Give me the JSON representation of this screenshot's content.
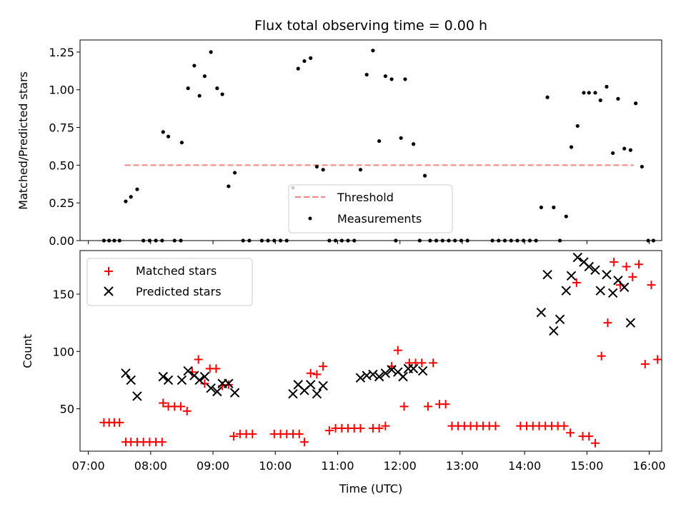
{
  "chart_data": [
    {
      "type": "scatter",
      "title": "Flux total observing time = 0.00 h",
      "xlabel": "",
      "ylabel": "Matched/Predicted stars",
      "ylim": [
        0,
        1.33
      ],
      "yticks": [
        "0.00",
        "0.25",
        "0.50",
        "0.75",
        "1.00",
        "1.25"
      ],
      "ytick_values": [
        0,
        0.25,
        0.5,
        0.75,
        1.0,
        1.25
      ],
      "xlim": [
        "06:52",
        "16:12"
      ],
      "xtick_labels_shown": false,
      "threshold": {
        "name": "Threshold",
        "y": 0.5,
        "x_range": [
          "07:35",
          "15:45"
        ],
        "color": "#ff7f7f",
        "dash": true
      },
      "series": [
        {
          "name": "Measurements",
          "color": "#000000",
          "marker": "dot",
          "points": [
            [
              "07:15",
              0
            ],
            [
              "07:20",
              0
            ],
            [
              "07:25",
              0
            ],
            [
              "07:30",
              0
            ],
            [
              "07:36",
              0.26
            ],
            [
              "07:41",
              0.29
            ],
            [
              "07:47",
              0.34
            ],
            [
              "07:53",
              0
            ],
            [
              "07:59",
              0
            ],
            [
              "08:05",
              0
            ],
            [
              "08:11",
              0
            ],
            [
              "08:12",
              0.72
            ],
            [
              "08:17",
              0.69
            ],
            [
              "08:23",
              0
            ],
            [
              "08:29",
              0
            ],
            [
              "08:30",
              0.65
            ],
            [
              "08:36",
              1.01
            ],
            [
              "08:42",
              1.16
            ],
            [
              "08:47",
              0.96
            ],
            [
              "08:52",
              1.09
            ],
            [
              "08:58",
              1.25
            ],
            [
              "09:04",
              1.01
            ],
            [
              "09:09",
              0.97
            ],
            [
              "09:15",
              0.36
            ],
            [
              "09:21",
              0.45
            ],
            [
              "09:29",
              0
            ],
            [
              "09:35",
              0
            ],
            [
              "09:47",
              0
            ],
            [
              "09:53",
              0
            ],
            [
              "09:59",
              0
            ],
            [
              "10:05",
              0
            ],
            [
              "10:11",
              0
            ],
            [
              "10:17",
              0.35
            ],
            [
              "10:22",
              1.14
            ],
            [
              "10:28",
              1.19
            ],
            [
              "10:34",
              1.21
            ],
            [
              "10:40",
              0.49
            ],
            [
              "10:46",
              0.47
            ],
            [
              "10:52",
              0
            ],
            [
              "10:58",
              0
            ],
            [
              "11:04",
              0
            ],
            [
              "11:10",
              0
            ],
            [
              "11:16",
              0
            ],
            [
              "11:22",
              0.47
            ],
            [
              "11:28",
              1.1
            ],
            [
              "11:34",
              1.26
            ],
            [
              "11:40",
              0.66
            ],
            [
              "11:46",
              1.09
            ],
            [
              "11:52",
              1.07
            ],
            [
              "11:56",
              0
            ],
            [
              "12:01",
              0.68
            ],
            [
              "12:05",
              1.07
            ],
            [
              "12:13",
              0.64
            ],
            [
              "12:19",
              0
            ],
            [
              "12:24",
              0.43
            ],
            [
              "12:29",
              0
            ],
            [
              "12:35",
              0
            ],
            [
              "12:41",
              0
            ],
            [
              "12:47",
              0
            ],
            [
              "12:53",
              0
            ],
            [
              "12:59",
              0
            ],
            [
              "13:05",
              0
            ],
            [
              "13:29",
              0
            ],
            [
              "13:35",
              0
            ],
            [
              "13:41",
              0
            ],
            [
              "13:47",
              0
            ],
            [
              "13:53",
              0
            ],
            [
              "13:59",
              0
            ],
            [
              "14:05",
              0
            ],
            [
              "14:11",
              0
            ],
            [
              "14:16",
              0.22
            ],
            [
              "14:22",
              0.95
            ],
            [
              "14:28",
              0.22
            ],
            [
              "14:34",
              0
            ],
            [
              "14:40",
              0.16
            ],
            [
              "14:45",
              0.62
            ],
            [
              "14:51",
              0.76
            ],
            [
              "14:57",
              0.98
            ],
            [
              "15:02",
              0.98
            ],
            [
              "15:08",
              0.98
            ],
            [
              "15:13",
              0.93
            ],
            [
              "15:19",
              1.02
            ],
            [
              "15:25",
              0.58
            ],
            [
              "15:30",
              0.94
            ],
            [
              "15:36",
              0.61
            ],
            [
              "15:42",
              0.6
            ],
            [
              "15:47",
              0.91
            ],
            [
              "15:53",
              0.49
            ],
            [
              "15:59",
              0
            ],
            [
              "16:04",
              0
            ]
          ]
        }
      ],
      "legend": {
        "placement": "lower-center",
        "entries": [
          "Threshold",
          "Measurements"
        ]
      }
    },
    {
      "type": "scatter",
      "title": "",
      "xlabel": "Time (UTC)",
      "ylabel": "Count",
      "ylim": [
        13,
        188
      ],
      "yticks": [
        "50",
        "100",
        "150"
      ],
      "ytick_values": [
        50,
        100,
        150
      ],
      "xlim": [
        "06:52",
        "16:12"
      ],
      "xticks": [
        "07:00",
        "08:00",
        "09:00",
        "10:00",
        "11:00",
        "12:00",
        "13:00",
        "14:00",
        "15:00",
        "16:00"
      ],
      "series": [
        {
          "name": "Matched stars",
          "color": "#ff0000",
          "marker": "plus",
          "points": [
            [
              "07:15",
              38
            ],
            [
              "07:20",
              38
            ],
            [
              "07:25",
              38
            ],
            [
              "07:30",
              38
            ],
            [
              "07:36",
              21
            ],
            [
              "07:41",
              21
            ],
            [
              "07:47",
              21
            ],
            [
              "07:53",
              21
            ],
            [
              "07:59",
              21
            ],
            [
              "08:05",
              21
            ],
            [
              "08:11",
              21
            ],
            [
              "08:12",
              55
            ],
            [
              "08:17",
              52
            ],
            [
              "08:23",
              52
            ],
            [
              "08:29",
              52
            ],
            [
              "08:35",
              48
            ],
            [
              "08:40",
              82
            ],
            [
              "08:46",
              93
            ],
            [
              "08:52",
              72
            ],
            [
              "08:57",
              85
            ],
            [
              "09:03",
              85
            ],
            [
              "09:09",
              70
            ],
            [
              "09:15",
              71
            ],
            [
              "09:20",
              26
            ],
            [
              "09:26",
              28
            ],
            [
              "09:32",
              28
            ],
            [
              "09:38",
              28
            ],
            [
              "09:59",
              28
            ],
            [
              "10:05",
              28
            ],
            [
              "10:11",
              28
            ],
            [
              "10:17",
              28
            ],
            [
              "10:23",
              28
            ],
            [
              "10:28",
              21
            ],
            [
              "10:34",
              81
            ],
            [
              "10:40",
              80
            ],
            [
              "10:46",
              87
            ],
            [
              "10:52",
              31
            ],
            [
              "10:58",
              33
            ],
            [
              "11:04",
              33
            ],
            [
              "11:10",
              33
            ],
            [
              "11:16",
              33
            ],
            [
              "11:22",
              33
            ],
            [
              "11:34",
              33
            ],
            [
              "11:40",
              33
            ],
            [
              "11:46",
              35
            ],
            [
              "11:52",
              87
            ],
            [
              "11:58",
              101
            ],
            [
              "12:04",
              52
            ],
            [
              "12:09",
              90
            ],
            [
              "12:15",
              90
            ],
            [
              "12:21",
              90
            ],
            [
              "12:27",
              52
            ],
            [
              "12:32",
              90
            ],
            [
              "12:38",
              54
            ],
            [
              "12:44",
              54
            ],
            [
              "12:50",
              35
            ],
            [
              "12:56",
              35
            ],
            [
              "13:02",
              35
            ],
            [
              "13:08",
              35
            ],
            [
              "13:14",
              35
            ],
            [
              "13:20",
              35
            ],
            [
              "13:26",
              35
            ],
            [
              "13:32",
              35
            ],
            [
              "13:56",
              35
            ],
            [
              "14:02",
              35
            ],
            [
              "14:08",
              35
            ],
            [
              "14:14",
              35
            ],
            [
              "14:20",
              35
            ],
            [
              "14:26",
              35
            ],
            [
              "14:32",
              35
            ],
            [
              "14:38",
              35
            ],
            [
              "14:44",
              29
            ],
            [
              "14:50",
              160
            ],
            [
              "14:56",
              26
            ],
            [
              "15:02",
              26
            ],
            [
              "15:08",
              20
            ],
            [
              "15:14",
              96
            ],
            [
              "15:20",
              125
            ],
            [
              "15:26",
              178
            ],
            [
              "15:32",
              158
            ],
            [
              "15:38",
              174
            ],
            [
              "15:44",
              165
            ],
            [
              "15:50",
              176
            ],
            [
              "15:56",
              89
            ],
            [
              "16:02",
              158
            ],
            [
              "16:08",
              93
            ]
          ]
        },
        {
          "name": "Predicted stars",
          "color": "#000000",
          "marker": "x",
          "points": [
            [
              "07:36",
              81
            ],
            [
              "07:41",
              75
            ],
            [
              "07:47",
              61
            ],
            [
              "08:12",
              78
            ],
            [
              "08:17",
              75
            ],
            [
              "08:30",
              75
            ],
            [
              "08:36",
              83
            ],
            [
              "08:42",
              79
            ],
            [
              "08:47",
              75
            ],
            [
              "08:52",
              78
            ],
            [
              "08:58",
              68
            ],
            [
              "09:04",
              65
            ],
            [
              "09:09",
              72
            ],
            [
              "09:15",
              72
            ],
            [
              "09:21",
              64
            ],
            [
              "10:17",
              63
            ],
            [
              "10:22",
              71
            ],
            [
              "10:28",
              66
            ],
            [
              "10:34",
              71
            ],
            [
              "10:40",
              63
            ],
            [
              "10:46",
              70
            ],
            [
              "11:22",
              77
            ],
            [
              "11:28",
              79
            ],
            [
              "11:34",
              80
            ],
            [
              "11:40",
              78
            ],
            [
              "11:46",
              81
            ],
            [
              "11:52",
              84
            ],
            [
              "11:58",
              82
            ],
            [
              "12:03",
              78
            ],
            [
              "12:08",
              85
            ],
            [
              "12:13",
              85
            ],
            [
              "12:22",
              83
            ],
            [
              "14:16",
              134
            ],
            [
              "14:22",
              167
            ],
            [
              "14:28",
              118
            ],
            [
              "14:34",
              128
            ],
            [
              "14:40",
              153
            ],
            [
              "14:45",
              166
            ],
            [
              "14:51",
              182
            ],
            [
              "14:57",
              178
            ],
            [
              "15:02",
              174
            ],
            [
              "15:08",
              171
            ],
            [
              "15:13",
              153
            ],
            [
              "15:19",
              167
            ],
            [
              "15:25",
              151
            ],
            [
              "15:30",
              162
            ],
            [
              "15:36",
              156
            ],
            [
              "15:42",
              125
            ]
          ]
        }
      ],
      "legend": {
        "placement": "upper-left",
        "entries": [
          "Matched stars",
          "Predicted stars"
        ]
      }
    }
  ]
}
